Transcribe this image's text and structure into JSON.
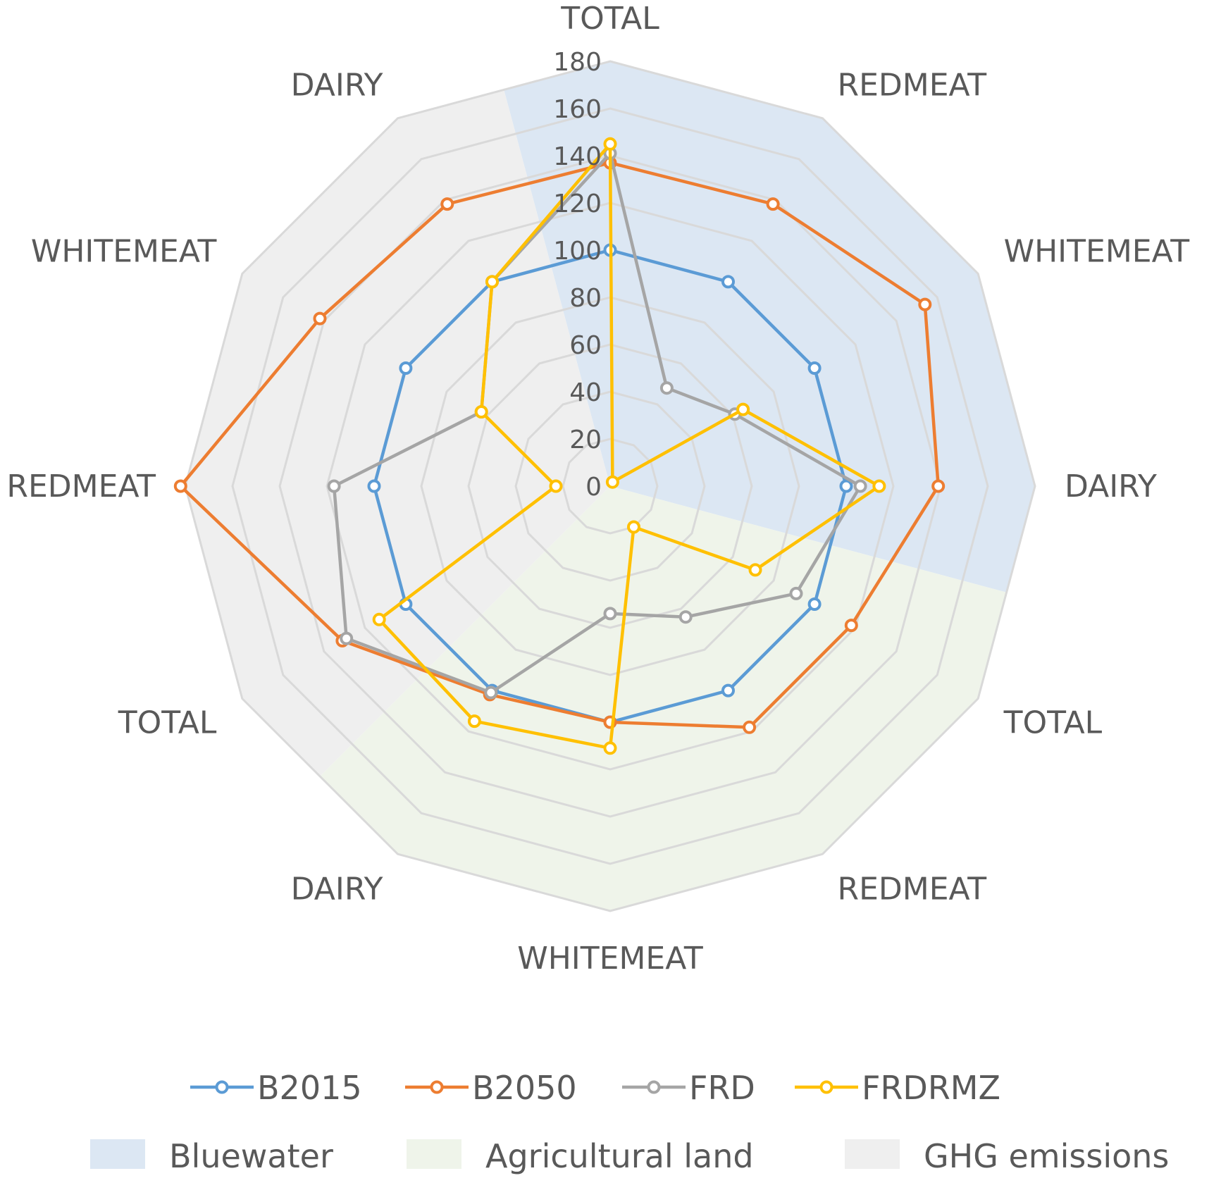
{
  "chart_data": {
    "type": "radar",
    "title": "",
    "axis_categories": [
      "TOTAL",
      "REDMEAT",
      "WHITEMEAT",
      "DAIRY",
      "TOTAL",
      "REDMEAT",
      "WHITEMEAT",
      "DAIRY",
      "TOTAL",
      "REDMEAT",
      "WHITEMEAT",
      "DAIRY"
    ],
    "radial_range": [
      0,
      180
    ],
    "radial_ticks": [
      "0",
      "20",
      "40",
      "60",
      "80",
      "100",
      "120",
      "140",
      "160",
      "180"
    ],
    "grid": true,
    "series": [
      {
        "name": "B2015",
        "color": "#5B9BD5",
        "values": [
          100,
          100,
          100,
          100,
          100,
          100,
          100,
          100,
          100,
          100,
          100,
          100
        ]
      },
      {
        "name": "B2050",
        "color": "#ED7D31",
        "values": [
          137,
          138,
          154,
          139,
          118,
          118,
          100,
          102,
          131,
          182,
          142,
          138
        ]
      },
      {
        "name": "FRD",
        "color": "#A5A5A5",
        "values": [
          141,
          48,
          61,
          106,
          91,
          64,
          54,
          101,
          129,
          117,
          63,
          100
        ]
      },
      {
        "name": "FRDRMZ",
        "color": "#FFC000",
        "values": [
          145,
          2,
          65,
          114,
          71,
          20,
          111,
          115,
          113,
          23,
          63,
          100
        ]
      }
    ],
    "category_groups": [
      {
        "name": "Bluewater",
        "color": "#DCE7F3"
      },
      {
        "name": "Agricultural land",
        "color": "#EFF4EA"
      },
      {
        "name": "GHG emissions",
        "color": "#EFEFEF"
      }
    ],
    "legend_position": "bottom"
  }
}
